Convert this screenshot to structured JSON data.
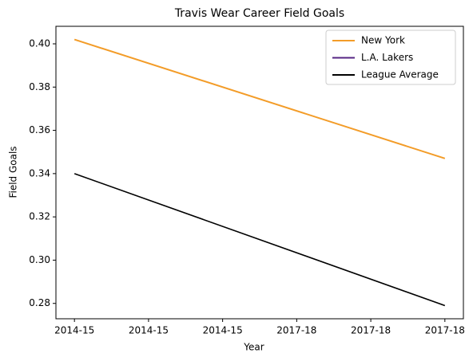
{
  "chart_data": {
    "type": "line",
    "title": "Travis Wear Career Field Goals",
    "xlabel": "Year",
    "ylabel": "Field Goals",
    "x": [
      0,
      5
    ],
    "series": [
      {
        "name": "New York",
        "color": "#f39c28",
        "values": [
          0.402,
          0.347
        ]
      },
      {
        "name": "L.A. Lakers",
        "color": "#552583",
        "values": [
          null,
          null
        ]
      },
      {
        "name": "League Average",
        "color": "#000000",
        "values": [
          0.34,
          0.279
        ]
      }
    ],
    "xlim": [
      -0.25,
      5.25
    ],
    "xticks": [
      {
        "value": 0,
        "label": "2014-15"
      },
      {
        "value": 1,
        "label": "2014-15"
      },
      {
        "value": 2,
        "label": "2014-15"
      },
      {
        "value": 3,
        "label": "2017-18"
      },
      {
        "value": 4,
        "label": "2017-18"
      },
      {
        "value": 5,
        "label": "2017-18"
      }
    ],
    "ylim": [
      0.2729,
      0.4081
    ],
    "yticks": [
      0.28,
      {
        "value": 0.3,
        "label": "0.30"
      },
      0.32,
      0.34,
      0.36,
      0.38,
      {
        "value": 0.4,
        "label": "0.40"
      }
    ],
    "grid": false,
    "legend": "upper right"
  }
}
